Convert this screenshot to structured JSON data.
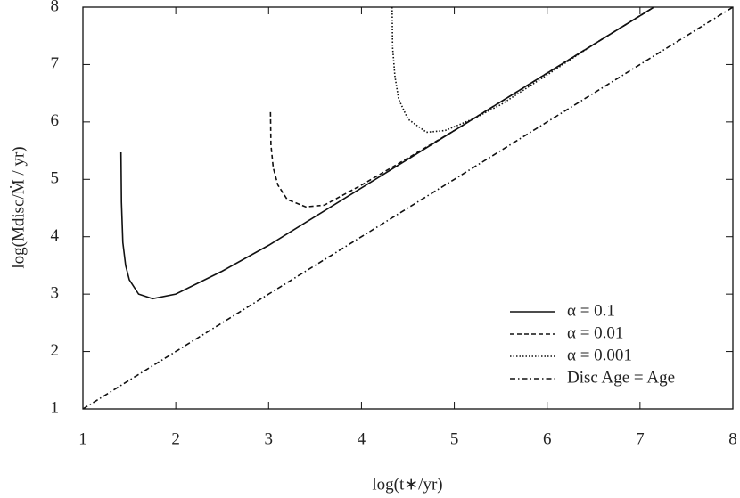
{
  "chart_data": {
    "type": "line",
    "xlabel": "log(t∗/yr)",
    "ylabel": "log(Mdisc/Ṁ / yr)",
    "xlim": [
      1,
      8
    ],
    "ylim": [
      1,
      8
    ],
    "xticks": [
      1,
      2,
      3,
      4,
      5,
      6,
      7,
      8
    ],
    "yticks": [
      1,
      2,
      3,
      4,
      5,
      6,
      7,
      8
    ],
    "legend": "lower right",
    "series": [
      {
        "name": "α = 0.1",
        "color": "#111111",
        "dash": "solid",
        "x": [
          1.41,
          1.415,
          1.43,
          1.46,
          1.5,
          1.6,
          1.75,
          2,
          2.5,
          3,
          4,
          5,
          6,
          7,
          7.15
        ],
        "values": [
          5.47,
          4.6,
          3.9,
          3.5,
          3.25,
          3.0,
          2.92,
          3.0,
          3.4,
          3.85,
          4.85,
          5.85,
          6.85,
          7.85,
          8.0
        ]
      },
      {
        "name": "α = 0.01",
        "color": "#111111",
        "dash": "dashed",
        "x": [
          3.02,
          3.025,
          3.05,
          3.1,
          3.2,
          3.4,
          3.6,
          4,
          4.5,
          5,
          6,
          7,
          7.15
        ],
        "values": [
          6.17,
          5.6,
          5.2,
          4.9,
          4.65,
          4.52,
          4.55,
          4.9,
          5.37,
          5.85,
          6.85,
          7.85,
          8.0
        ]
      },
      {
        "name": "α = 0.001",
        "color": "#111111",
        "dash": "dotted",
        "x": [
          4.33,
          4.335,
          4.36,
          4.4,
          4.5,
          4.7,
          4.9,
          5.2,
          5.5,
          6,
          6.5,
          7,
          7.15
        ],
        "values": [
          8.0,
          7.3,
          6.8,
          6.4,
          6.05,
          5.82,
          5.85,
          6.05,
          6.3,
          6.82,
          7.35,
          7.85,
          8.0
        ]
      },
      {
        "name": "Disc Age = Age",
        "color": "#111111",
        "dash": "dashdot",
        "x": [
          1,
          8
        ],
        "values": [
          1,
          8
        ]
      }
    ]
  }
}
